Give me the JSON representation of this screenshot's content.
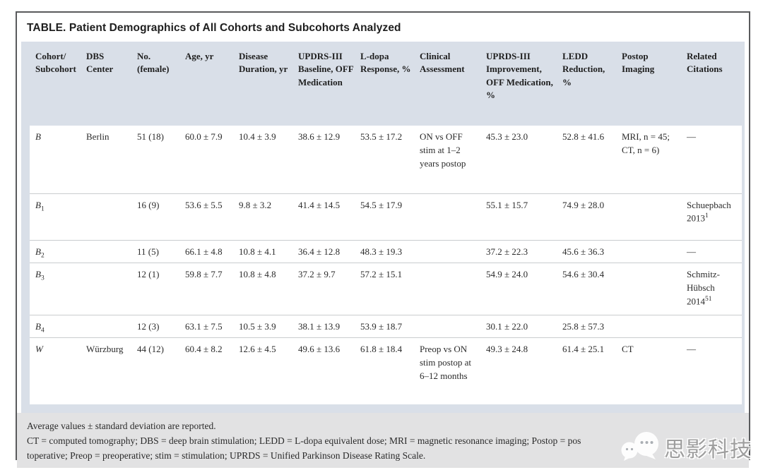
{
  "title": "TABLE.  Patient Demographics of All Cohorts and Subcohorts Analyzed",
  "table": {
    "columns": [
      "Cohort/ Subcohort",
      "DBS Center",
      "No. (female)",
      "Age, yr",
      "Disease Duration, yr",
      "UPDRS-III Baseline, OFF Medication",
      "L-dopa Response, %",
      "Clinical Assessment",
      "UPRDS-III Improvement, OFF Medication, %",
      "LEDD Reduction, %",
      "Postop Imaging",
      "Related Citations"
    ],
    "rows": [
      {
        "cohort": "B",
        "cohort_sub": "",
        "center": "Berlin",
        "n_female": "51 (18)",
        "age": "60.0 ± 7.9",
        "duration": "10.4 ± 3.9",
        "updrs_baseline": "38.6 ± 12.9",
        "ldopa_response": "53.5 ± 17.2",
        "assessment": "ON vs OFF stim at 1–2 years postop",
        "improvement": "45.3 ± 23.0",
        "ledd_reduction": "52.8 ± 41.6",
        "imaging": "MRI, n = 45; CT, n = 6)",
        "citation": "—",
        "citation_sup": ""
      },
      {
        "cohort": "B",
        "cohort_sub": "1",
        "center": "",
        "n_female": "16 (9)",
        "age": "53.6 ± 5.5",
        "duration": "9.8 ± 3.2",
        "updrs_baseline": "41.4 ± 14.5",
        "ldopa_response": "54.5 ± 17.9",
        "assessment": "",
        "improvement": "55.1 ± 15.7",
        "ledd_reduction": "74.9 ± 28.0",
        "imaging": "",
        "citation": "Schuepbach 2013",
        "citation_sup": "1"
      },
      {
        "cohort": "B",
        "cohort_sub": "2",
        "center": "",
        "n_female": "11 (5)",
        "age": "66.1 ± 4.8",
        "duration": "10.8 ± 4.1",
        "updrs_baseline": "36.4 ± 12.8",
        "ldopa_response": "48.3 ± 19.3",
        "assessment": "",
        "improvement": "37.2 ± 22.3",
        "ledd_reduction": "45.6 ± 36.3",
        "imaging": "",
        "citation": "—",
        "citation_sup": ""
      },
      {
        "cohort": "B",
        "cohort_sub": "3",
        "center": "",
        "n_female": "12 (1)",
        "age": "59.8 ± 7.7",
        "duration": "10.8 ± 4.8",
        "updrs_baseline": "37.2 ± 9.7",
        "ldopa_response": "57.2 ± 15.1",
        "assessment": "",
        "improvement": "54.9 ± 24.0",
        "ledd_reduction": "54.6 ± 30.4",
        "imaging": "",
        "citation": "Schmitz-Hübsch 2014",
        "citation_sup": "51"
      },
      {
        "cohort": "B",
        "cohort_sub": "4",
        "center": "",
        "n_female": "12 (3)",
        "age": "63.1 ± 7.5",
        "duration": "10.5 ± 3.9",
        "updrs_baseline": "38.1 ± 13.9",
        "ldopa_response": "53.9 ± 18.7",
        "assessment": "",
        "improvement": "30.1 ± 22.0",
        "ledd_reduction": "25.8 ± 57.3",
        "imaging": "",
        "citation": "",
        "citation_sup": ""
      },
      {
        "cohort": "W",
        "cohort_sub": "",
        "center": "Würzburg",
        "n_female": "44 (12)",
        "age": "60.4 ± 8.2",
        "duration": "12.6 ± 4.5",
        "updrs_baseline": "49.6 ± 13.6",
        "ldopa_response": "61.8 ± 18.4",
        "assessment": "Preop vs ON stim postop at 6–12 months",
        "improvement": "49.3 ± 24.8",
        "ledd_reduction": "61.4 ± 25.1",
        "imaging": "CT",
        "citation": "—",
        "citation_sup": ""
      }
    ]
  },
  "footnotes": {
    "line1": "Average values ± standard deviation are reported.",
    "line2": "CT = computed tomography; DBS = deep brain stimulation; LEDD = L-dopa equivalent dose; MRI = magnetic resonance imaging; Postop = pos",
    "line3": "toperative; Preop = preoperative; stim = stimulation; UPRDS = Unified Parkinson Disease Rating Scale."
  },
  "watermark": {
    "text": "思影科技"
  },
  "colors": {
    "panel_header": "#d9dfe8",
    "footnote_band": "#e2e2e3",
    "frame_border": "#595a5c",
    "row_separator": "#c9ccce",
    "text": "#2a2a2a"
  }
}
